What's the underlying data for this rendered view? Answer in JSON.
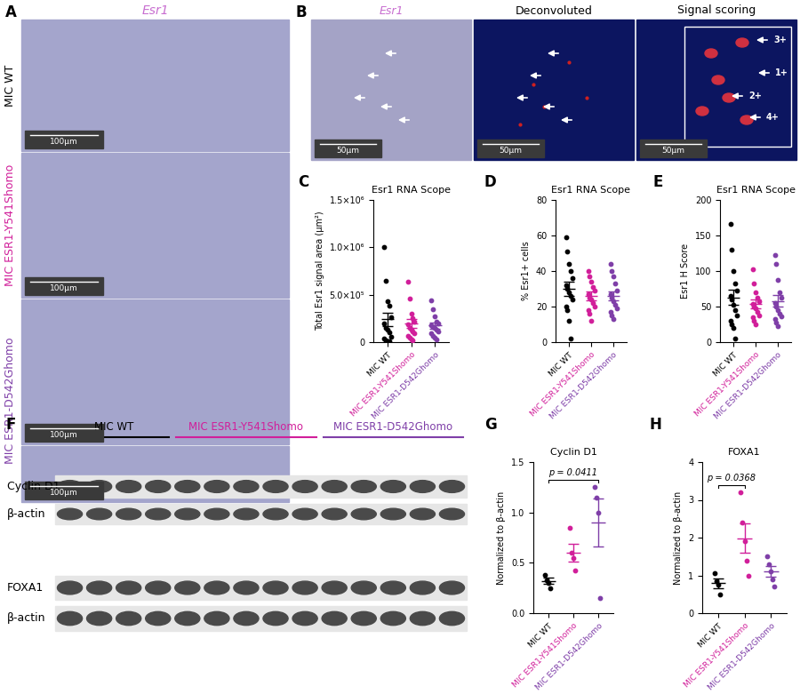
{
  "image_panels": {
    "A": {
      "panel": "A",
      "title": "Esr1",
      "title_color": "#c86ed0",
      "rows": [
        {
          "label": "MIC WT",
          "color": "#000000",
          "scale_bars": [
            "100µm"
          ]
        },
        {
          "label": "MIC ESR1-Y541Shomo",
          "color": "#d11f9a",
          "scale_bars": [
            "100µm"
          ]
        },
        {
          "label": "MIC ESR1-D542Ghomo",
          "color": "#7f3fa8",
          "scale_bars": [
            "100µm",
            "100µm"
          ]
        }
      ]
    },
    "B": {
      "panel": "B",
      "titles": [
        {
          "text": "Esr1",
          "color": "#c86ed0"
        },
        {
          "text": "Deconvoluted",
          "color": "#000000"
        },
        {
          "text": "Signal scoring",
          "color": "#000000"
        }
      ],
      "scale_bars": [
        "50µm",
        "50µm",
        "50µm"
      ],
      "scores": [
        "3+",
        "1+",
        "2+",
        "4+"
      ]
    }
  },
  "blot": {
    "panel": "F",
    "groups": [
      {
        "label": "MIC WT",
        "color": "#000000",
        "lanes": 4
      },
      {
        "label": "MIC ESR1-Y541Shomo",
        "color": "#d11f9a",
        "lanes": 5
      },
      {
        "label": "MIC ESR1-D542Ghomo",
        "color": "#7f3fa8",
        "lanes": 5
      }
    ],
    "rows": [
      "Cyclin D1",
      "β-actin",
      "FOXA1",
      "β-actin"
    ]
  },
  "chart_data": [
    {
      "panel": "C",
      "type": "scatter",
      "marker": "o",
      "title": "Esr1 RNA Scope",
      "y_label": "Total Esr1 signal area (µm²)",
      "categories": [
        "MIC WT",
        "MIC ESR1-Y541Shomo",
        "MIC ESR1-D542Ghomo"
      ],
      "colors": [
        "#000000",
        "#d11f9a",
        "#7f3fa8"
      ],
      "values": [
        [
          1000000,
          650000,
          430000,
          380000,
          260000,
          200000,
          150000,
          130000,
          100000,
          60000,
          40000,
          20000,
          10000,
          5000
        ],
        [
          640000,
          460000,
          300000,
          250000,
          220000,
          190000,
          150000,
          130000,
          110000,
          90000,
          70000,
          50000,
          30000,
          20000
        ],
        [
          440000,
          350000,
          270000,
          220000,
          200000,
          180000,
          160000,
          150000,
          130000,
          110000,
          90000,
          70000,
          50000,
          30000
        ]
      ],
      "mean": [
        240000,
        195000,
        175000
      ],
      "error": [
        70000,
        45000,
        32000
      ],
      "ylim": [
        0,
        1500000
      ],
      "yticks": [
        0,
        {
          "value": 500000,
          "label": "5.0×10⁵"
        },
        {
          "value": 1000000,
          "label": "1.0×10⁶"
        },
        {
          "value": 1500000,
          "label": "1.5×10⁶"
        }
      ]
    },
    {
      "panel": "D",
      "type": "scatter",
      "marker": "o",
      "title": "Esr1 RNA Scope",
      "y_label": "% Esr1+ cells",
      "categories": [
        "MIC WT",
        "MIC ESR1-Y541Shomo",
        "MIC ESR1-D542Ghomo"
      ],
      "colors": [
        "#000000",
        "#d11f9a",
        "#7f3fa8"
      ],
      "values": [
        [
          59,
          51,
          44,
          40,
          36,
          32,
          30,
          28,
          26,
          24,
          20,
          18,
          12,
          2
        ],
        [
          40,
          37,
          34,
          31,
          29,
          27,
          25,
          24,
          22,
          20,
          18,
          16,
          12
        ],
        [
          44,
          40,
          37,
          33,
          29,
          27,
          25,
          23,
          21,
          19,
          17,
          15,
          13
        ]
      ],
      "mean": [
        30,
        26,
        26
      ],
      "error": [
        4,
        2.3,
        2.6
      ],
      "ylim": [
        0,
        80
      ],
      "yticks": [
        0,
        20,
        40,
        60,
        80
      ]
    },
    {
      "panel": "E",
      "type": "scatter",
      "marker": "o",
      "title": "Esr1 RNA Scope",
      "y_label": "Esr1 H Score",
      "categories": [
        "MIC WT",
        "MIC ESR1-Y541Shomo",
        "MIC ESR1-D542Ghomo"
      ],
      "colors": [
        "#000000",
        "#d11f9a",
        "#7f3fa8"
      ],
      "values": [
        [
          166,
          130,
          100,
          83,
          72,
          65,
          60,
          52,
          45,
          38,
          30,
          25,
          20,
          5
        ],
        [
          103,
          82,
          70,
          62,
          58,
          54,
          50,
          47,
          42,
          38,
          35,
          30,
          25
        ],
        [
          123,
          110,
          88,
          70,
          62,
          55,
          50,
          45,
          40,
          36,
          32,
          28,
          22
        ]
      ],
      "mean": [
        63,
        54,
        58
      ],
      "error": [
        11,
        6,
        8
      ],
      "ylim": [
        0,
        200
      ],
      "yticks": [
        0,
        50,
        100,
        150,
        200
      ]
    },
    {
      "panel": "G",
      "type": "scatter",
      "marker": "o",
      "title": "Cyclin D1",
      "y_label": "Normalized to β-actin",
      "categories": [
        "MIC WT",
        "MIC ESR1-Y541Shomo",
        "MIC ESR1-D542Ghomo"
      ],
      "colors": [
        "#000000",
        "#d11f9a",
        "#7f3fa8"
      ],
      "values": [
        [
          0.38,
          0.33,
          0.3,
          0.25
        ],
        [
          0.85,
          0.6,
          0.55,
          0.42
        ],
        [
          1.25,
          1.15,
          1.0,
          0.15
        ]
      ],
      "mean": [
        0.32,
        0.6,
        0.9
      ],
      "error": [
        0.03,
        0.09,
        0.24
      ],
      "ylim": [
        0,
        1.5
      ],
      "yticks": [
        {
          "value": 0,
          "label": "0.0"
        },
        {
          "value": 0.5,
          "label": "0.5"
        },
        {
          "value": 1.0,
          "label": "1.0"
        },
        {
          "value": 1.5,
          "label": "1.5"
        }
      ],
      "annotations": [
        {
          "text": "p = 0.0411",
          "between": [
            "MIC WT",
            "MIC ESR1-D542Ghomo"
          ]
        }
      ]
    },
    {
      "panel": "H",
      "type": "scatter",
      "marker": "o",
      "title": "FOXA1",
      "y_label": "Normalized to β-actin",
      "categories": [
        "MIC WT",
        "MIC ESR1-Y541Shomo",
        "MIC ESR1-D542Ghomo"
      ],
      "colors": [
        "#000000",
        "#d11f9a",
        "#7f3fa8"
      ],
      "values": [
        [
          1.05,
          0.85,
          0.75,
          0.5
        ],
        [
          3.2,
          2.4,
          1.9,
          1.4,
          1.0
        ],
        [
          1.5,
          1.3,
          1.1,
          0.9,
          0.7
        ]
      ],
      "mean": [
        0.79,
        1.98,
        1.1
      ],
      "error": [
        0.12,
        0.39,
        0.14
      ],
      "ylim": [
        0,
        4
      ],
      "yticks": [
        0,
        1,
        2,
        3,
        4
      ],
      "annotations": [
        {
          "text": "p = 0.0368",
          "between": [
            "MIC WT",
            "MIC ESR1-Y541Shomo"
          ]
        }
      ]
    }
  ]
}
